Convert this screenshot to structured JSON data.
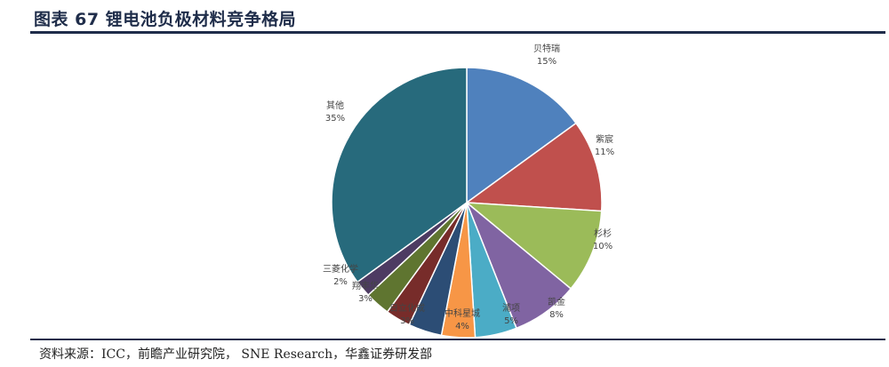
{
  "title": "图表 67 锂电池负极材料竞争格局",
  "source": "资料来源：ICC，前瞻产业研究院， SNE Research，华鑫证券研发部",
  "chart_data": {
    "type": "pie",
    "title": "",
    "unit": "%",
    "slices": [
      {
        "name": "贝特瑞",
        "value": 15,
        "label": "15%",
        "color": "#4f81bd"
      },
      {
        "name": "紫宸",
        "value": 11,
        "label": "11%",
        "color": "#c0504d"
      },
      {
        "name": "杉杉",
        "value": 10,
        "label": "10%",
        "color": "#9bbb59"
      },
      {
        "name": "凯金",
        "value": 8,
        "label": "8%",
        "color": "#8064a2"
      },
      {
        "name": "浦项",
        "value": 5,
        "label": "5%",
        "color": "#4bacc6"
      },
      {
        "name": "中科星城",
        "value": 4,
        "label": "4%",
        "color": "#f79646"
      },
      {
        "name": "",
        "value": 4,
        "label": "",
        "color": "#2c4d75"
      },
      {
        "name": "日立化成",
        "value": 3,
        "label": "3%",
        "color": "#772c2a"
      },
      {
        "name": "翔丰华",
        "value": 3,
        "label": "3%",
        "color": "#5f7530"
      },
      {
        "name": "三菱化学",
        "value": 2,
        "label": "2%",
        "color": "#4d3b62"
      },
      {
        "name": "其他",
        "value": 35,
        "label": "35%",
        "color": "#276a7c"
      }
    ]
  }
}
